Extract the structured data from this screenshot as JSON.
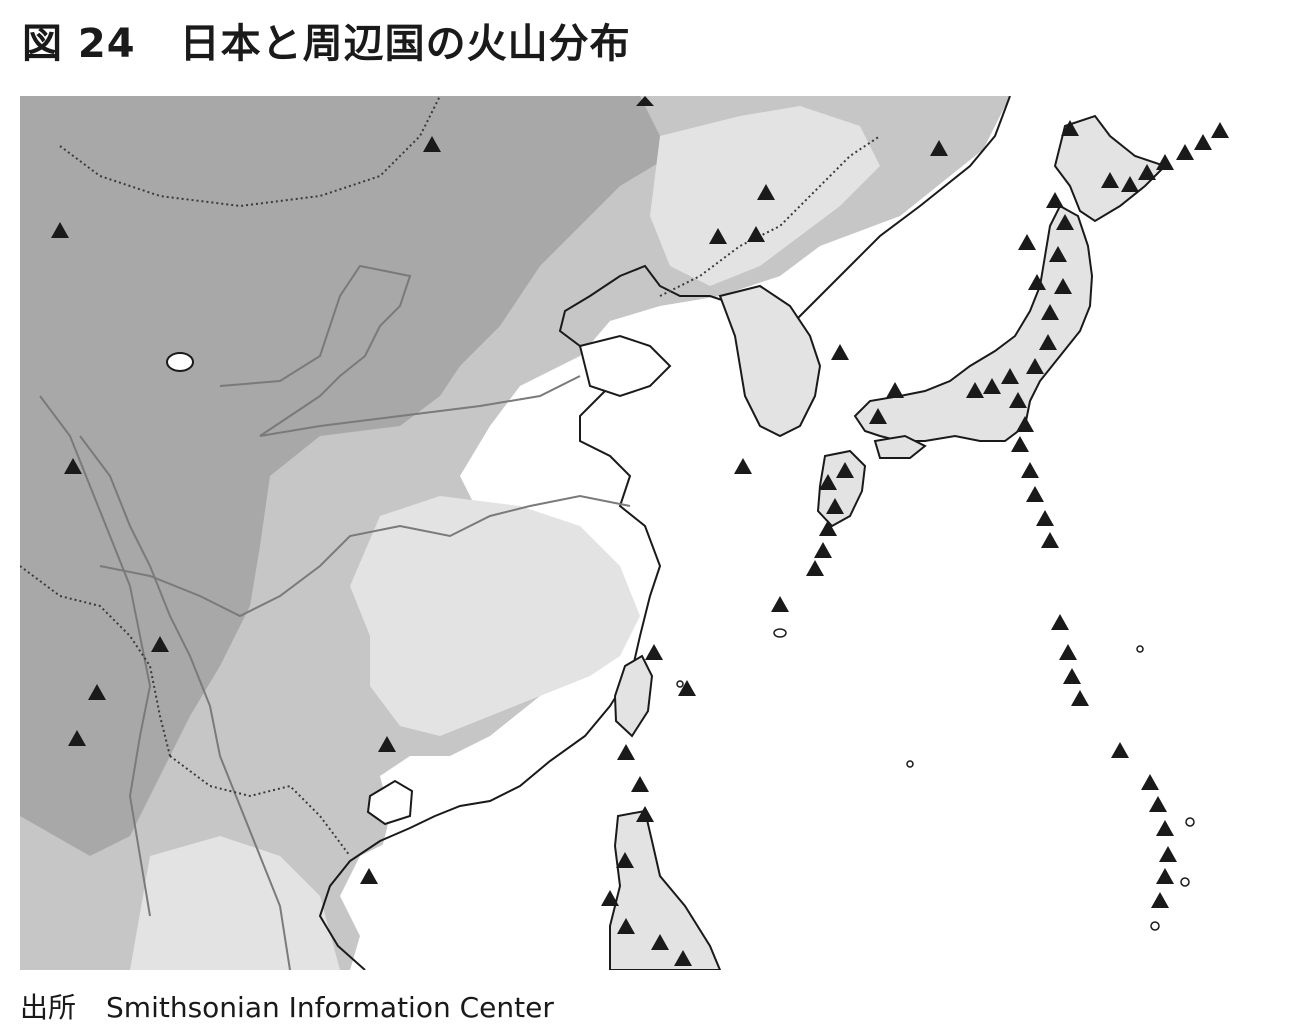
{
  "figure": {
    "label": "図 24",
    "title": "日本と周辺国の火山分布"
  },
  "source": {
    "label": "出所",
    "text": "Smithsonian Information Center"
  },
  "map": {
    "region": "東アジア",
    "colors": {
      "highland": "#a8a8a8",
      "upland": "#c6c6c6",
      "hills": "#e3e3e3",
      "lowland": "#ffffff",
      "coast": "#1a1a1a",
      "river": "#7a7a7a",
      "volcano": "#1a1a1a"
    },
    "volcano_symbol": "triangle-icon"
  }
}
